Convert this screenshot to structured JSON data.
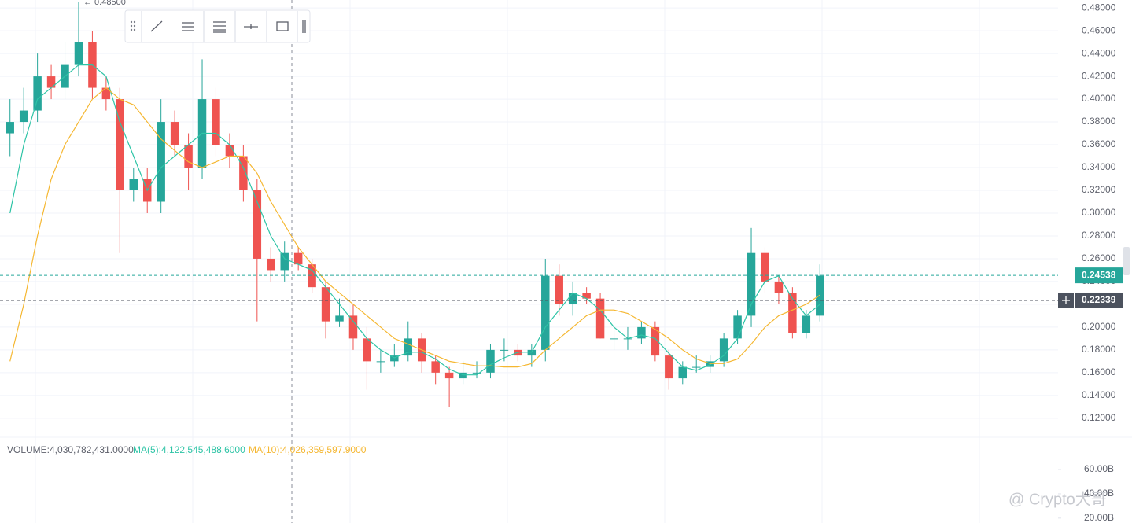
{
  "chart_data": {
    "type": "candlestick",
    "open": [
      0.37,
      0.38,
      0.39,
      0.42,
      0.41,
      0.43,
      0.45,
      0.41,
      0.4,
      0.32,
      0.33,
      0.31,
      0.38,
      0.36,
      0.34,
      0.4,
      0.36,
      0.35,
      0.32,
      0.26,
      0.25,
      0.265,
      0.255,
      0.235,
      0.205,
      0.21,
      0.19,
      0.17,
      0.17,
      0.175,
      0.19,
      0.17,
      0.16,
      0.155,
      0.16,
      0.16,
      0.18,
      0.18,
      0.175,
      0.18,
      0.245,
      0.22,
      0.23,
      0.225,
      0.19,
      0.19,
      0.19,
      0.2,
      0.175,
      0.155,
      0.165,
      0.165,
      0.17,
      0.19,
      0.21,
      0.265,
      0.24,
      0.23,
      0.195,
      0.21
    ],
    "high": [
      0.4,
      0.41,
      0.44,
      0.43,
      0.45,
      0.485,
      0.46,
      0.42,
      0.41,
      0.34,
      0.34,
      0.4,
      0.39,
      0.37,
      0.435,
      0.41,
      0.37,
      0.36,
      0.33,
      0.27,
      0.275,
      0.27,
      0.26,
      0.24,
      0.225,
      0.22,
      0.2,
      0.18,
      0.185,
      0.205,
      0.195,
      0.175,
      0.165,
      0.17,
      0.17,
      0.185,
      0.19,
      0.185,
      0.185,
      0.26,
      0.255,
      0.24,
      0.235,
      0.23,
      0.2,
      0.2,
      0.205,
      0.205,
      0.18,
      0.17,
      0.175,
      0.175,
      0.195,
      0.215,
      0.287,
      0.27,
      0.245,
      0.235,
      0.215,
      0.255
    ],
    "low": [
      0.35,
      0.37,
      0.38,
      0.4,
      0.4,
      0.42,
      0.4,
      0.39,
      0.265,
      0.31,
      0.3,
      0.3,
      0.35,
      0.32,
      0.33,
      0.35,
      0.34,
      0.31,
      0.205,
      0.24,
      0.24,
      0.25,
      0.23,
      0.19,
      0.2,
      0.18,
      0.145,
      0.16,
      0.165,
      0.17,
      0.16,
      0.15,
      0.13,
      0.15,
      0.155,
      0.155,
      0.17,
      0.17,
      0.165,
      0.17,
      0.21,
      0.21,
      0.22,
      0.19,
      0.18,
      0.18,
      0.185,
      0.17,
      0.145,
      0.15,
      0.16,
      0.16,
      0.165,
      0.185,
      0.2,
      0.23,
      0.22,
      0.19,
      0.19,
      0.205
    ],
    "close": [
      0.38,
      0.39,
      0.42,
      0.41,
      0.43,
      0.45,
      0.41,
      0.4,
      0.32,
      0.33,
      0.31,
      0.38,
      0.36,
      0.34,
      0.4,
      0.36,
      0.35,
      0.32,
      0.26,
      0.25,
      0.265,
      0.255,
      0.235,
      0.205,
      0.21,
      0.19,
      0.17,
      0.17,
      0.175,
      0.19,
      0.17,
      0.16,
      0.155,
      0.16,
      0.16,
      0.18,
      0.18,
      0.175,
      0.18,
      0.245,
      0.22,
      0.23,
      0.225,
      0.19,
      0.19,
      0.19,
      0.2,
      0.175,
      0.155,
      0.165,
      0.165,
      0.17,
      0.19,
      0.21,
      0.265,
      0.24,
      0.23,
      0.195,
      0.21,
      0.245
    ],
    "up_color": "#26a69a",
    "down_color": "#ef5350",
    "series": [
      {
        "color": "#2ec4a6",
        "values": [
          0.3,
          0.36,
          0.4,
          0.41,
          0.42,
          0.43,
          0.43,
          0.42,
          0.38,
          0.35,
          0.32,
          0.34,
          0.35,
          0.36,
          0.37,
          0.37,
          0.36,
          0.34,
          0.31,
          0.28,
          0.26,
          0.255,
          0.25,
          0.235,
          0.22,
          0.205,
          0.19,
          0.18,
          0.173,
          0.178,
          0.178,
          0.172,
          0.163,
          0.158,
          0.158,
          0.167,
          0.173,
          0.178,
          0.178,
          0.2,
          0.215,
          0.23,
          0.225,
          0.215,
          0.2,
          0.19,
          0.193,
          0.19,
          0.177,
          0.165,
          0.162,
          0.167,
          0.175,
          0.19,
          0.22,
          0.24,
          0.245,
          0.225,
          0.21,
          0.22
        ]
      },
      {
        "color": "#f5b731",
        "values": [
          0.17,
          0.22,
          0.28,
          0.33,
          0.36,
          0.38,
          0.4,
          0.41,
          0.4,
          0.395,
          0.38,
          0.365,
          0.355,
          0.345,
          0.34,
          0.345,
          0.35,
          0.35,
          0.335,
          0.31,
          0.29,
          0.27,
          0.255,
          0.24,
          0.23,
          0.22,
          0.21,
          0.2,
          0.19,
          0.185,
          0.18,
          0.175,
          0.17,
          0.168,
          0.166,
          0.166,
          0.165,
          0.165,
          0.168,
          0.18,
          0.19,
          0.2,
          0.21,
          0.215,
          0.215,
          0.212,
          0.205,
          0.198,
          0.19,
          0.18,
          0.172,
          0.168,
          0.168,
          0.172,
          0.185,
          0.2,
          0.21,
          0.215,
          0.22,
          0.228
        ]
      }
    ],
    "ylim": [
      0.104,
      0.487
    ],
    "yticks": [
      {
        "value": 0.48,
        "label": "0.48000"
      },
      {
        "value": 0.46,
        "label": "0.46000"
      },
      {
        "value": 0.44,
        "label": "0.44000"
      },
      {
        "value": 0.42,
        "label": "0.42000"
      },
      {
        "value": 0.4,
        "label": "0.40000"
      },
      {
        "value": 0.38,
        "label": "0.38000"
      },
      {
        "value": 0.36,
        "label": "0.36000"
      },
      {
        "value": 0.34,
        "label": "0.34000"
      },
      {
        "value": 0.32,
        "label": "0.32000"
      },
      {
        "value": 0.3,
        "label": "0.30000"
      },
      {
        "value": 0.28,
        "label": "0.28000"
      },
      {
        "value": 0.26,
        "label": "0.26000"
      },
      {
        "value": 0.24,
        "label": "0.24000"
      },
      {
        "value": 0.22,
        "label": "0.22000"
      },
      {
        "value": 0.2,
        "label": "0.20000"
      },
      {
        "value": 0.18,
        "label": "0.18000"
      },
      {
        "value": 0.16,
        "label": "0.16000"
      },
      {
        "value": 0.14,
        "label": "0.14000"
      },
      {
        "value": 0.12,
        "label": "0.12000"
      }
    ],
    "grid": true,
    "high_label": "← 0.48500",
    "last_price": {
      "value": 0.24538,
      "label": "0.24538",
      "color": "#26a69a"
    },
    "crosshair_price": {
      "value": 0.22339,
      "label": "0.22339",
      "color": "#4c525e"
    },
    "volume_legend": [
      "VOLUME:4,030,782,431.0000",
      "MA(5):4,122,545,488.6000",
      "MA(10):4,026,359,597.9000"
    ],
    "volume_ylim": [
      16000000000,
      84000000000
    ],
    "volume_yticks": [
      {
        "value": 60000000000,
        "label": "60.00B"
      },
      {
        "value": 40000000000,
        "label": "40.00B"
      },
      {
        "value": 20000000000,
        "label": "20.00B"
      }
    ],
    "watermark": "@ Crypto大哥"
  }
}
